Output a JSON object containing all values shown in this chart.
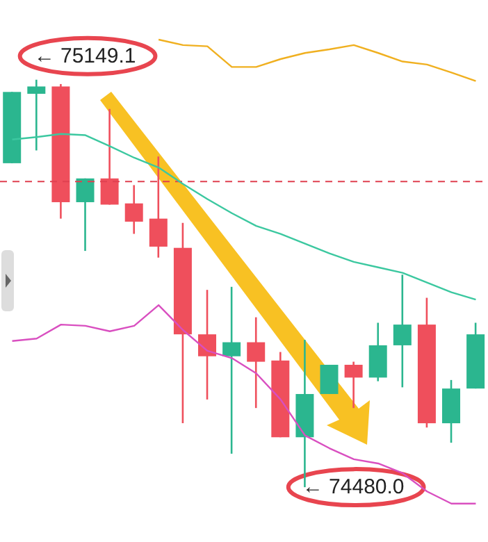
{
  "chart_data": {
    "type": "candlestick",
    "categories": [
      null,
      null,
      null,
      null,
      null,
      null,
      null,
      null,
      null,
      null,
      null,
      null,
      null,
      null,
      null,
      null,
      null,
      null,
      null,
      null
    ],
    "ohlc": [
      [
        75012,
        75129,
        75012,
        75129
      ],
      [
        75126,
        75149.1,
        75033,
        75138
      ],
      [
        75138,
        75142,
        74921,
        74948
      ],
      [
        74948,
        74987,
        74868,
        74987
      ],
      [
        74987,
        75101,
        74944,
        74944
      ],
      [
        74946,
        74976,
        74896,
        74916
      ],
      [
        74921,
        75023,
        74857,
        74875
      ],
      [
        74873,
        74914,
        74585,
        74731
      ],
      [
        74731,
        74804,
        74624,
        74695
      ],
      [
        74695,
        74809,
        74535,
        74718
      ],
      [
        74718,
        74759,
        74610,
        74686
      ],
      [
        74688,
        74702,
        74562,
        74562
      ],
      [
        74562,
        74722,
        74480.0,
        74633
      ],
      [
        74633,
        74681,
        74633,
        74681
      ],
      [
        74681,
        74686,
        74610,
        74660
      ],
      [
        74660,
        74750,
        74654,
        74713
      ],
      [
        74713,
        74829,
        74644,
        74747
      ],
      [
        74747,
        74791,
        74578,
        74585
      ],
      [
        74585,
        74656,
        74553,
        74642
      ],
      [
        74642,
        74750,
        74642,
        74731
      ]
    ],
    "colors": [
      "#2bb68f",
      "#2bb68f",
      "#ef4f5c",
      "#2bb68f",
      "#ef4f5c",
      "#ef4f5c",
      "#ef4f5c",
      "#ef4f5c",
      "#ef4f5c",
      "#2bb68f",
      "#ef4f5c",
      "#ef4f5c",
      "#2bb68f",
      "#2bb68f",
      "#ef4f5c",
      "#2bb68f",
      "#2bb68f",
      "#ef4f5c",
      "#2bb68f",
      "#2bb68f"
    ],
    "series": [
      {
        "type": "line",
        "color": "#f0b020",
        "values": [
          null,
          null,
          null,
          null,
          null,
          null,
          75215,
          75206,
          75204,
          75170,
          75170,
          75183,
          75193,
          75199,
          75206,
          75193,
          75179,
          75174,
          75161,
          75147
        ]
      },
      {
        "type": "line",
        "color": "#3cc8a0",
        "values": [
          75051,
          75055,
          75060,
          75058,
          75040,
          75021,
          75005,
          74978,
          74953,
          74930,
          74909,
          74896,
          74880,
          74864,
          74850,
          74841,
          74832,
          74816,
          74800,
          74788
        ]
      },
      {
        "type": "line",
        "color": "#d94fc0",
        "values": [
          74720,
          74724,
          74747,
          74745,
          74736,
          74745,
          74779,
          74738,
          74704,
          74692,
          74667,
          74624,
          74565,
          74544,
          74526,
          74519,
          74503,
          74473,
          74453,
          74453
        ]
      }
    ],
    "ylim": [
      74390,
      75280
    ],
    "tick_labels": false,
    "ref_lines": [
      {
        "axis": "y",
        "value": 74982,
        "color": "#e04050",
        "line_style": "dashed"
      }
    ],
    "annotations": [
      "← 75149.1",
      "← 74480.0"
    ]
  }
}
